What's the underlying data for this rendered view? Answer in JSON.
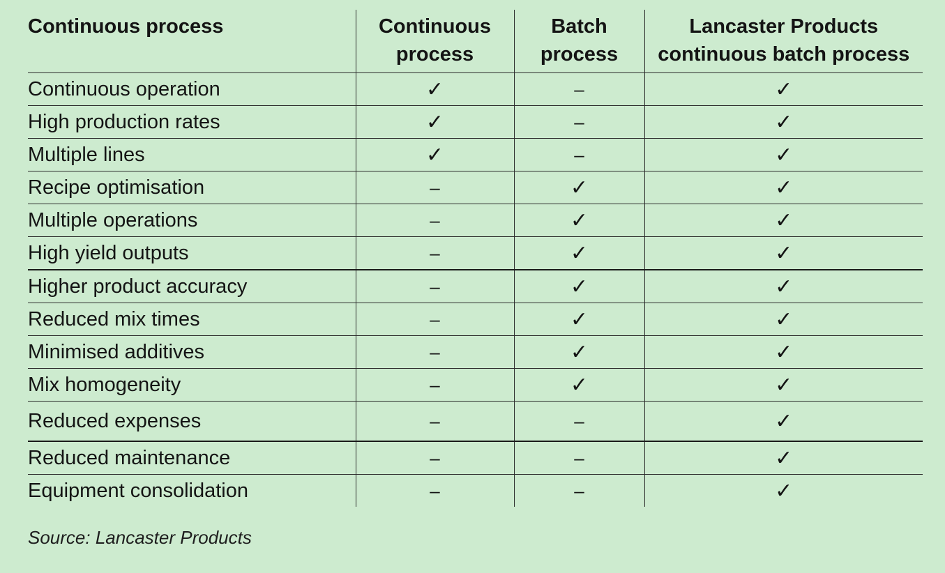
{
  "table": {
    "headers": [
      "Continuous process",
      "Continuous process",
      "Batch process",
      "Lancaster Products continuous batch process"
    ],
    "rows": [
      {
        "label": "Continuous operation",
        "marks": [
          "✓",
          "–",
          "✓"
        ]
      },
      {
        "label": "High production rates",
        "marks": [
          "✓",
          "–",
          "✓"
        ]
      },
      {
        "label": "Multiple lines",
        "marks": [
          "✓",
          "–",
          "✓"
        ]
      },
      {
        "label": "Recipe optimisation",
        "marks": [
          "–",
          "✓",
          "✓"
        ]
      },
      {
        "label": "Multiple operations",
        "marks": [
          "–",
          "✓",
          "✓"
        ]
      },
      {
        "label": "High yield outputs",
        "marks": [
          "–",
          "✓",
          "✓"
        ]
      },
      {
        "label": "Higher product accuracy",
        "marks": [
          "–",
          "✓",
          "✓"
        ]
      },
      {
        "label": "Reduced mix times",
        "marks": [
          "–",
          "✓",
          "✓"
        ]
      },
      {
        "label": "Minimised additives",
        "marks": [
          "–",
          "✓",
          "✓"
        ]
      },
      {
        "label": "Mix homogeneity",
        "marks": [
          "–",
          "✓",
          "✓"
        ]
      },
      {
        "label": "Reduced expenses",
        "marks": [
          "–",
          "–",
          "✓"
        ]
      },
      {
        "label": "Reduced maintenance",
        "marks": [
          "–",
          "–",
          "✓"
        ]
      },
      {
        "label": "Equipment consolidation",
        "marks": [
          "–",
          "–",
          "✓"
        ]
      }
    ]
  },
  "source": "Source: Lancaster Products",
  "colors": {
    "background": "#cdebcf",
    "text": "#141414",
    "rule": "#2a2a2a"
  },
  "icons": {
    "yes": "check-mark-icon",
    "no": "dash-icon"
  }
}
